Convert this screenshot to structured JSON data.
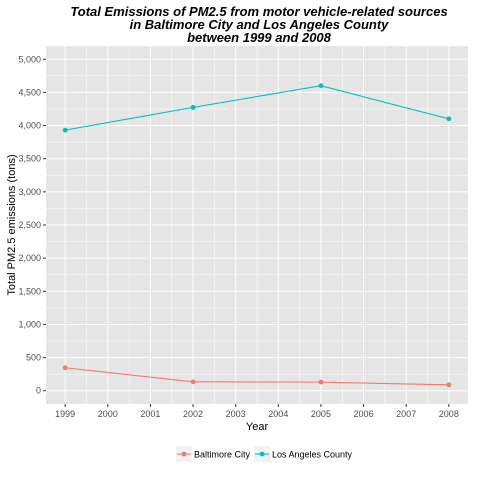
{
  "chart_data": {
    "type": "line",
    "title_lines": [
      "Total Emissions of PM2.5 from motor vehicle-related sources",
      "in Baltimore City and Los Angeles County",
      "between 1999 and 2008"
    ],
    "xlabel": "Year",
    "ylabel": "Total PM2.5 emissions (tons)",
    "x_ticks": [
      "1999",
      "2000",
      "2001",
      "2002",
      "2003",
      "2004",
      "2005",
      "2006",
      "2007",
      "2008"
    ],
    "x_tick_values": [
      1999,
      2000,
      2001,
      2002,
      2003,
      2004,
      2005,
      2006,
      2007,
      2008
    ],
    "y_ticks": [
      "0",
      "500",
      "1,000",
      "1,500",
      "2,000",
      "2,500",
      "3,000",
      "3,500",
      "4,000",
      "4,500",
      "5,000"
    ],
    "y_tick_values": [
      0,
      500,
      1000,
      1500,
      2000,
      2500,
      3000,
      3500,
      4000,
      4500,
      5000
    ],
    "xlim": [
      1998.55,
      2008.45
    ],
    "ylim": [
      -200,
      5200
    ],
    "x": [
      1999,
      2002,
      2005,
      2008
    ],
    "series": [
      {
        "name": "Baltimore City",
        "color": "#F8766D",
        "values": [
          347,
          134,
          130,
          89
        ]
      },
      {
        "name": "Los Angeles County",
        "color": "#00BFC4",
        "values": [
          3931,
          4274,
          4601,
          4101
        ]
      }
    ],
    "grid": true,
    "panel_background": "#E5E5E5",
    "grid_color": "#FFFFFF",
    "legend_position": "bottom"
  }
}
